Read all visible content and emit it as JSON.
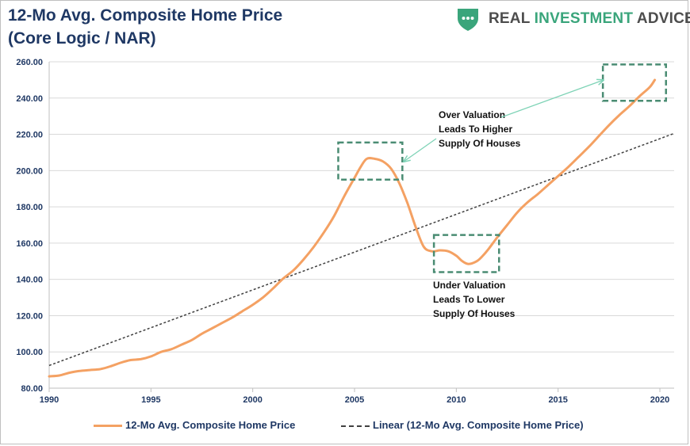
{
  "title_line1": "12-Mo Avg. Composite Home Price",
  "title_line2": "(Core Logic / NAR)",
  "logo": {
    "word1": "REAL",
    "word2": "INVESTMENT",
    "word3": "ADVICE",
    "icon": "shield-icon",
    "color": "#3aa57b"
  },
  "colors": {
    "series": "#f4a163",
    "trend": "#404040",
    "box": "#4a8c73",
    "arrow": "#7ed3b6",
    "title": "#1f3864"
  },
  "chart_data": {
    "type": "line",
    "title": "12-Mo Avg. Composite Home Price (Core Logic / NAR)",
    "xlim": [
      1990,
      2020.7
    ],
    "ylim": [
      80,
      260
    ],
    "x_ticks": [
      "1990",
      "1995",
      "2000",
      "2005",
      "2010",
      "2015",
      "2020"
    ],
    "y_ticks": [
      "80.00",
      "100.00",
      "120.00",
      "140.00",
      "160.00",
      "180.00",
      "200.00",
      "220.00",
      "240.00",
      "260.00"
    ],
    "grid": true,
    "legend_position": "bottom",
    "series": [
      {
        "name": "12-Mo Avg. Composite Home Price",
        "x": [
          1990,
          1990.5,
          1991,
          1991.5,
          1992,
          1992.5,
          1993,
          1993.5,
          1994,
          1994.5,
          1995,
          1995.5,
          1996,
          1996.5,
          1997,
          1997.5,
          1998,
          1998.5,
          1999,
          1999.5,
          2000,
          2000.5,
          2001,
          2001.5,
          2002,
          2002.5,
          2003,
          2003.5,
          2004,
          2004.5,
          2005,
          2005.3,
          2005.6,
          2006,
          2006.4,
          2006.8,
          2007.2,
          2007.6,
          2008,
          2008.4,
          2008.8,
          2009.2,
          2009.6,
          2010,
          2010.3,
          2010.6,
          2011,
          2011.3,
          2011.6,
          2012,
          2012.5,
          2013,
          2013.5,
          2014,
          2014.5,
          2015,
          2015.5,
          2016,
          2016.5,
          2017,
          2017.5,
          2018,
          2018.5,
          2019,
          2019.5,
          2019.75
        ],
        "values": [
          86.5,
          87,
          88.5,
          89.5,
          90,
          90.5,
          92,
          94,
          95.5,
          96,
          97.5,
          100,
          101.5,
          104,
          106.5,
          110,
          113,
          116,
          119,
          122.5,
          126,
          130,
          135,
          140.5,
          145,
          151,
          158,
          166,
          175,
          186,
          196,
          202,
          206.5,
          206.5,
          205,
          201,
          193,
          182,
          169,
          158,
          155.5,
          156,
          155.5,
          153,
          150,
          148.5,
          150,
          153,
          157,
          163,
          170,
          177,
          182.5,
          187,
          192,
          197,
          202,
          207.5,
          213,
          219,
          225,
          230.5,
          235.5,
          241,
          246,
          250
        ]
      },
      {
        "name": "Linear (12-Mo Avg. Composite Home Price)",
        "x": [
          1990,
          2020.7
        ],
        "values": [
          92.5,
          220.5
        ]
      }
    ],
    "annotations": [
      {
        "lines": [
          "Over Valuation",
          "Leads To Higher",
          "Supply Of Houses"
        ]
      },
      {
        "lines": [
          "Under Valuation",
          "Leads To Lower",
          "Supply Of Houses"
        ]
      }
    ]
  }
}
